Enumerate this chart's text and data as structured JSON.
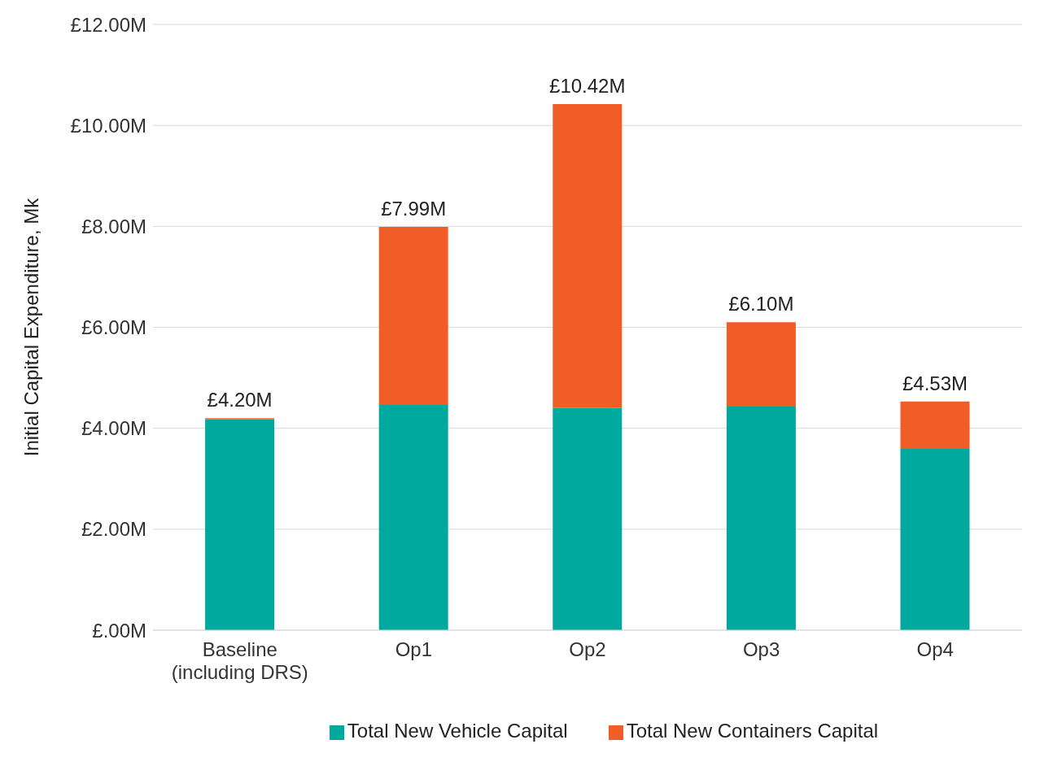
{
  "chart_data": {
    "type": "bar",
    "stacked": true,
    "ylabel": "Initial Capital Expenditure, Mk",
    "categories": [
      "Baseline\n(including DRS)",
      "Op1",
      "Op2",
      "Op3",
      "Op4"
    ],
    "series": [
      {
        "name": "Total New Vehicle Capital",
        "color": "#00a99d",
        "values": [
          4.18,
          4.46,
          4.4,
          4.43,
          3.59
        ]
      },
      {
        "name": "Total New Containers Capital",
        "color": "#f15d27",
        "values": [
          0.02,
          3.53,
          6.02,
          1.67,
          0.94
        ]
      }
    ],
    "totals": [
      "£4.20M",
      "£7.99M",
      "£10.42M",
      "£6.10M",
      "£4.53M"
    ],
    "ylim": [
      0,
      12
    ],
    "yticks": [
      {
        "value": 0,
        "label": "£.00M"
      },
      {
        "value": 2,
        "label": "£2.00M"
      },
      {
        "value": 4,
        "label": "£4.00M"
      },
      {
        "value": 6,
        "label": "£6.00M"
      },
      {
        "value": 8,
        "label": "£8.00M"
      },
      {
        "value": 10,
        "label": "£10.00M"
      },
      {
        "value": 12,
        "label": "£12.00M"
      }
    ],
    "grid": "y",
    "legend": "bottom"
  }
}
